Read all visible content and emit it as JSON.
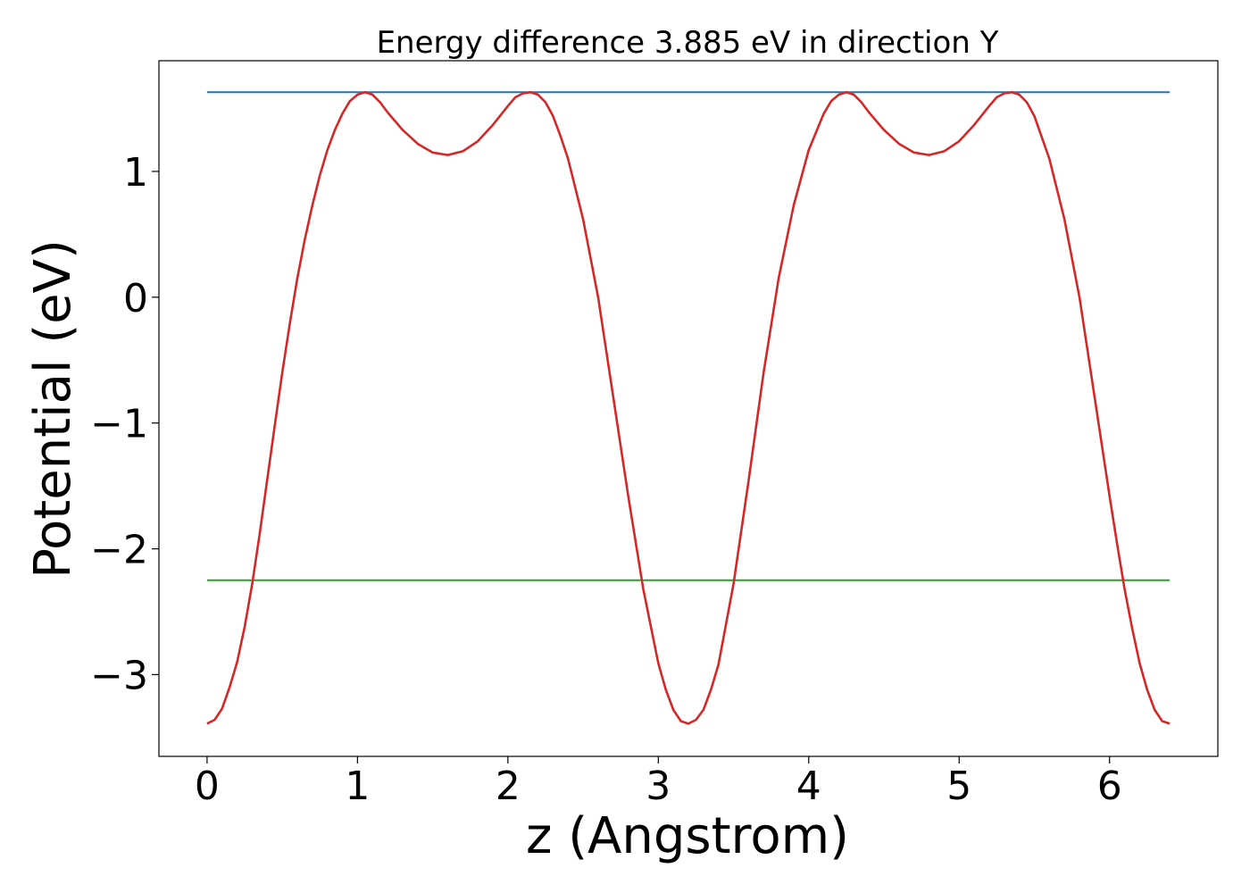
{
  "chart_data": {
    "type": "line",
    "title": "Energy difference 3.885 eV in direction Y",
    "xlabel": "z (Angstrom)",
    "ylabel": "Potential (eV)",
    "xlim": [
      -0.32,
      6.72
    ],
    "ylim": [
      -3.65,
      1.88
    ],
    "x_ticks": [
      0,
      1,
      2,
      3,
      4,
      5,
      6
    ],
    "x_tick_labels": [
      "0",
      "1",
      "2",
      "3",
      "4",
      "5",
      "6"
    ],
    "y_ticks": [
      1,
      0,
      -1,
      -2,
      -3
    ],
    "y_tick_labels": [
      "1",
      "0",
      "−1",
      "−2",
      "−3"
    ],
    "grid": false,
    "series": [
      {
        "color": "#d62728",
        "x": [
          0,
          0.05,
          0.1,
          0.15,
          0.2,
          0.25,
          0.3,
          0.35,
          0.4,
          0.45,
          0.5,
          0.55,
          0.6,
          0.65,
          0.7,
          0.75,
          0.8,
          0.85,
          0.9,
          0.95,
          1.0,
          1.05,
          1.1,
          1.15,
          1.2,
          1.3,
          1.4,
          1.5,
          1.6,
          1.7,
          1.8,
          1.9,
          2.0,
          2.05,
          2.1,
          2.15,
          2.2,
          2.25,
          2.3,
          2.35,
          2.4,
          2.5,
          2.6,
          2.7,
          2.8,
          2.9,
          3.0,
          3.05,
          3.1,
          3.15,
          3.2,
          3.25,
          3.3,
          3.35,
          3.4,
          3.5,
          3.6,
          3.7,
          3.8,
          3.9,
          4.0,
          4.1,
          4.15,
          4.2,
          4.25,
          4.3,
          4.35,
          4.4,
          4.5,
          4.6,
          4.7,
          4.8,
          4.9,
          5.0,
          5.1,
          5.2,
          5.25,
          5.3,
          5.35,
          5.4,
          5.45,
          5.5,
          5.6,
          5.7,
          5.8,
          5.9,
          6.0,
          6.05,
          6.1,
          6.15,
          6.2,
          6.25,
          6.3,
          6.35,
          6.4
        ],
        "y": [
          -3.39,
          -3.36,
          -3.27,
          -3.1,
          -2.9,
          -2.62,
          -2.28,
          -1.88,
          -1.45,
          -1.02,
          -0.6,
          -0.21,
          0.15,
          0.46,
          0.73,
          0.97,
          1.17,
          1.33,
          1.46,
          1.56,
          1.61,
          1.63,
          1.61,
          1.55,
          1.47,
          1.33,
          1.22,
          1.15,
          1.13,
          1.16,
          1.24,
          1.37,
          1.52,
          1.59,
          1.62,
          1.63,
          1.61,
          1.55,
          1.44,
          1.28,
          1.1,
          0.62,
          0.0,
          -0.79,
          -1.58,
          -2.32,
          -2.91,
          -3.12,
          -3.28,
          -3.37,
          -3.39,
          -3.36,
          -3.28,
          -3.12,
          -2.92,
          -2.28,
          -1.46,
          -0.6,
          0.15,
          0.73,
          1.17,
          1.46,
          1.56,
          1.61,
          1.63,
          1.61,
          1.55,
          1.47,
          1.33,
          1.22,
          1.15,
          1.13,
          1.16,
          1.24,
          1.37,
          1.52,
          1.59,
          1.62,
          1.63,
          1.61,
          1.55,
          1.44,
          1.1,
          0.62,
          0.0,
          -0.79,
          -1.58,
          -1.96,
          -2.32,
          -2.63,
          -2.91,
          -3.12,
          -3.28,
          -3.37,
          -3.39
        ]
      },
      {
        "color": "#1f77b4",
        "x": [
          0,
          6.4
        ],
        "y": [
          1.63,
          1.63
        ]
      },
      {
        "color": "#2ca02c",
        "x": [
          0,
          6.4
        ],
        "y": [
          -2.25,
          -2.25
        ]
      }
    ]
  }
}
